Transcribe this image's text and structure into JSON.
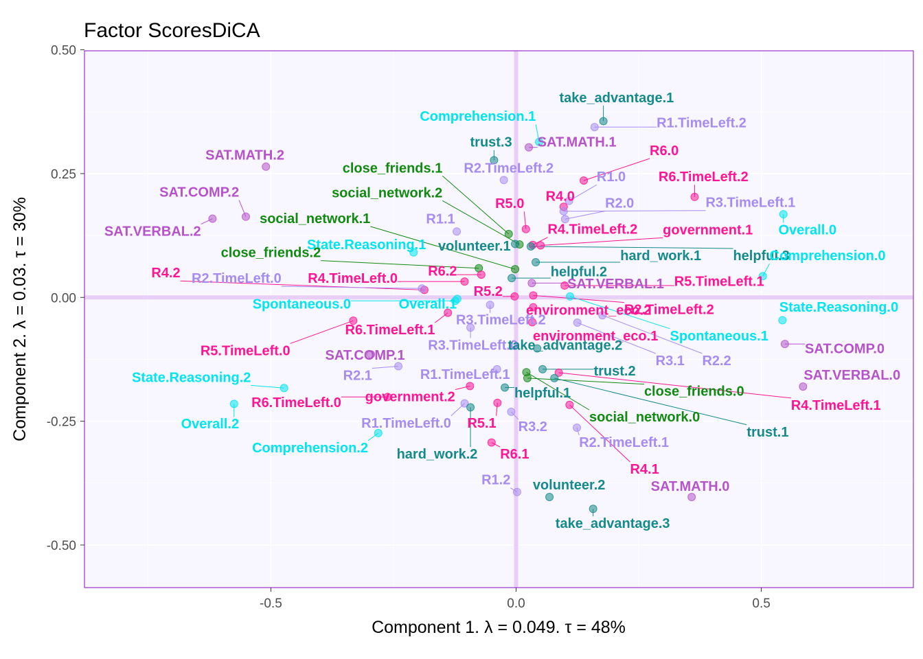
{
  "chart_data": {
    "type": "scatter",
    "title": "Factor ScoresDiCA",
    "xlabel": "Component 1.   λ = 0.049.  τ = 48%",
    "ylabel": "Component 2.   λ = 0.03.  τ = 30%",
    "xlim": [
      -0.88,
      0.81
    ],
    "ylim": [
      -0.586,
      0.498
    ],
    "xticks": [
      -0.5,
      0.0,
      0.5
    ],
    "xtick_labels": [
      "-0.5",
      "0.0",
      "0.5"
    ],
    "yticks": [
      -0.5,
      -0.25,
      0.0,
      0.25,
      0.5
    ],
    "ytick_labels": [
      "-0.50",
      "-0.25",
      "0.00",
      "0.25",
      "0.50"
    ],
    "grid": true,
    "colors": {
      "background": "#f8f6ff",
      "border": "#9932cc",
      "origin_lines": "#e8cff5",
      "grid": "#ffffff"
    },
    "groups": {
      "sat": "#b553c9",
      "teal": "#148a8a",
      "cyan": "#00e5ee",
      "lav": "#a78cf0",
      "pink": "#ff1493",
      "green": "#128a12"
    },
    "points": [
      {
        "label": "take_advantage.1",
        "x": 0.178,
        "y": 0.356,
        "group": "teal",
        "lx": 0.205,
        "ly": 0.404
      },
      {
        "label": "R1.TimeLeft.2",
        "x": 0.16,
        "y": 0.344,
        "group": "lav",
        "lx": 0.378,
        "ly": 0.353
      },
      {
        "label": "Comprehension.1",
        "x": 0.047,
        "y": 0.314,
        "group": "cyan",
        "lx": -0.078,
        "ly": 0.366
      },
      {
        "label": "trust.3",
        "x": -0.045,
        "y": 0.277,
        "group": "teal",
        "lx": -0.051,
        "ly": 0.314
      },
      {
        "label": "SAT.MATH.1",
        "x": 0.026,
        "y": 0.303,
        "group": "sat",
        "lx": 0.124,
        "ly": 0.314
      },
      {
        "label": "R6.0",
        "x": 0.138,
        "y": 0.236,
        "group": "pink",
        "lx": 0.302,
        "ly": 0.297
      },
      {
        "label": "SAT.MATH.2",
        "x": -0.51,
        "y": 0.264,
        "group": "sat",
        "lx": -0.553,
        "ly": 0.288
      },
      {
        "label": "close_friends.1",
        "x": -0.015,
        "y": 0.128,
        "group": "green",
        "lx": -0.252,
        "ly": 0.262
      },
      {
        "label": "R2.TimeLeft.2",
        "x": -0.025,
        "y": 0.237,
        "group": "lav",
        "lx": -0.015,
        "ly": 0.262
      },
      {
        "label": "R1.0",
        "x": 0.108,
        "y": 0.195,
        "group": "lav",
        "lx": 0.194,
        "ly": 0.244
      },
      {
        "label": "R6.TimeLeft.2",
        "x": 0.364,
        "y": 0.203,
        "group": "pink",
        "lx": 0.382,
        "ly": 0.244
      },
      {
        "label": "SAT.COMP.2",
        "x": -0.551,
        "y": 0.163,
        "group": "sat",
        "lx": -0.646,
        "ly": 0.213
      },
      {
        "label": "social_network.2",
        "x": 0.007,
        "y": 0.107,
        "group": "green",
        "lx": -0.263,
        "ly": 0.212
      },
      {
        "label": "R4.0",
        "x": 0.097,
        "y": 0.183,
        "group": "pink",
        "lx": 0.09,
        "ly": 0.205
      },
      {
        "label": "R3.TimeLeft.1",
        "x": 0.097,
        "y": 0.174,
        "group": "lav",
        "lx": 0.478,
        "ly": 0.192
      },
      {
        "label": "R2.0",
        "x": 0.1,
        "y": 0.158,
        "group": "lav",
        "lx": 0.211,
        "ly": 0.191
      },
      {
        "label": "R5.0",
        "x": 0.02,
        "y": 0.138,
        "group": "pink",
        "lx": -0.013,
        "ly": 0.19
      },
      {
        "label": "SAT.VERBAL.2",
        "x": -0.619,
        "y": 0.159,
        "group": "sat",
        "lx": -0.741,
        "ly": 0.134
      },
      {
        "label": "social_network.1",
        "x": -0.002,
        "y": 0.057,
        "group": "green",
        "lx": -0.41,
        "ly": 0.16
      },
      {
        "label": "R1.1",
        "x": -0.121,
        "y": 0.133,
        "group": "lav",
        "lx": -0.154,
        "ly": 0.159
      },
      {
        "label": "R4.TimeLeft.2",
        "x": 0.034,
        "y": 0.106,
        "group": "pink",
        "lx": 0.156,
        "ly": 0.138
      },
      {
        "label": "government.1",
        "x": 0.05,
        "y": 0.105,
        "group": "pink",
        "lx": 0.391,
        "ly": 0.137
      },
      {
        "label": "Overall.0",
        "x": 0.545,
        "y": 0.168,
        "group": "cyan",
        "lx": 0.594,
        "ly": 0.137
      },
      {
        "label": "volunteer.1",
        "x": -0.002,
        "y": 0.108,
        "group": "teal",
        "lx": -0.085,
        "ly": 0.104
      },
      {
        "label": "State.Reasoning.1",
        "x": -0.209,
        "y": 0.091,
        "group": "cyan",
        "lx": -0.305,
        "ly": 0.107
      },
      {
        "label": "close_friends.2",
        "x": -0.076,
        "y": 0.059,
        "group": "green",
        "lx": -0.5,
        "ly": 0.091
      },
      {
        "label": "hard_work.1",
        "x": 0.04,
        "y": 0.071,
        "group": "teal",
        "lx": 0.295,
        "ly": 0.085
      },
      {
        "label": "helpful.3",
        "x": 0.03,
        "y": 0.103,
        "group": "teal",
        "lx": 0.5,
        "ly": 0.085
      },
      {
        "label": "Comprehension.0",
        "x": 0.503,
        "y": 0.043,
        "group": "cyan",
        "lx": 0.635,
        "ly": 0.085
      },
      {
        "label": "helpful.2",
        "x": -0.009,
        "y": 0.039,
        "group": "teal",
        "lx": 0.128,
        "ly": 0.052
      },
      {
        "label": "R6.2",
        "x": -0.071,
        "y": 0.046,
        "group": "pink",
        "lx": -0.15,
        "ly": 0.054
      },
      {
        "label": "R4.2",
        "x": -0.187,
        "y": 0.015,
        "group": "pink",
        "lx": -0.714,
        "ly": 0.05
      },
      {
        "label": "R2.TimeLeft.0",
        "x": -0.192,
        "y": 0.018,
        "group": "lav",
        "lx": -0.57,
        "ly": 0.039
      },
      {
        "label": "R4.TimeLeft.0",
        "x": -0.105,
        "y": 0.032,
        "group": "pink",
        "lx": -0.333,
        "ly": 0.039
      },
      {
        "label": "SAT.VERBAL.1",
        "x": 0.032,
        "y": 0.029,
        "group": "sat",
        "lx": 0.203,
        "ly": 0.028
      },
      {
        "label": "R5.TimeLeft.1",
        "x": 0.099,
        "y": 0.024,
        "group": "pink",
        "lx": 0.414,
        "ly": 0.033
      },
      {
        "label": "R5.2",
        "x": -0.003,
        "y": 0.002,
        "group": "pink",
        "lx": -0.057,
        "ly": 0.013
      },
      {
        "label": "Spontaneous.0",
        "x": -0.124,
        "y": -0.007,
        "group": "cyan",
        "lx": -0.437,
        "ly": -0.013
      },
      {
        "label": "Overall.1",
        "x": -0.12,
        "y": -0.003,
        "group": "cyan",
        "lx": -0.18,
        "ly": -0.013
      },
      {
        "label": "State.Reasoning.0",
        "x": 0.543,
        "y": -0.046,
        "group": "cyan",
        "lx": 0.658,
        "ly": -0.019
      },
      {
        "label": "environment_eco.2",
        "x": 0.035,
        "y": -0.02,
        "group": "pink",
        "lx": 0.148,
        "ly": -0.025
      },
      {
        "label": "R2.TimeLeft.2",
        "x": 0.035,
        "y": 0.004,
        "group": "pink",
        "lx": 0.312,
        "ly": -0.024
      },
      {
        "label": "R3.TimeLeft.2",
        "x": -0.053,
        "y": -0.015,
        "group": "lav",
        "lx": -0.031,
        "ly": -0.045
      },
      {
        "label": "R6.TimeLeft.1",
        "x": -0.139,
        "y": -0.031,
        "group": "pink",
        "lx": -0.257,
        "ly": -0.065
      },
      {
        "label": "environment_eco.1",
        "x": 0.033,
        "y": -0.05,
        "group": "pink",
        "lx": 0.162,
        "ly": -0.077
      },
      {
        "label": "Spontaneous.1",
        "x": 0.11,
        "y": 0.002,
        "group": "cyan",
        "lx": 0.414,
        "ly": -0.077
      },
      {
        "label": "SAT.COMP.0",
        "x": 0.548,
        "y": -0.094,
        "group": "sat",
        "lx": 0.67,
        "ly": -0.103
      },
      {
        "label": "R3.TimeLeft.0",
        "x": -0.093,
        "y": -0.061,
        "group": "lav",
        "lx": -0.088,
        "ly": -0.096
      },
      {
        "label": "take_advantage.2",
        "x": 0.043,
        "y": -0.103,
        "group": "teal",
        "lx": 0.1,
        "ly": -0.096
      },
      {
        "label": "R5.TimeLeft.0",
        "x": -0.332,
        "y": -0.047,
        "group": "pink",
        "lx": -0.552,
        "ly": -0.107
      },
      {
        "label": "SAT.COMP.1",
        "x": -0.296,
        "y": -0.115,
        "group": "sat",
        "lx": -0.308,
        "ly": -0.116
      },
      {
        "label": "R3.1",
        "x": 0.125,
        "y": -0.051,
        "group": "lav",
        "lx": 0.314,
        "ly": -0.127
      },
      {
        "label": "R2.2",
        "x": 0.176,
        "y": -0.036,
        "group": "lav",
        "lx": 0.409,
        "ly": -0.127
      },
      {
        "label": "R2.1",
        "x": -0.24,
        "y": -0.139,
        "group": "lav",
        "lx": -0.323,
        "ly": -0.157
      },
      {
        "label": "R1.TimeLeft.1",
        "x": -0.039,
        "y": -0.145,
        "group": "lav",
        "lx": -0.104,
        "ly": -0.155
      },
      {
        "label": "trust.2",
        "x": 0.054,
        "y": -0.145,
        "group": "teal",
        "lx": 0.201,
        "ly": -0.148
      },
      {
        "label": "SAT.VERBAL.0",
        "x": 0.585,
        "y": -0.18,
        "group": "sat",
        "lx": 0.685,
        "ly": -0.156
      },
      {
        "label": "State.Reasoning.2",
        "x": -0.473,
        "y": -0.183,
        "group": "cyan",
        "lx": -0.662,
        "ly": -0.161
      },
      {
        "label": "government.2",
        "x": -0.094,
        "y": -0.179,
        "group": "pink",
        "lx": -0.216,
        "ly": -0.2
      },
      {
        "label": "helpful.1",
        "x": -0.023,
        "y": -0.182,
        "group": "teal",
        "lx": 0.054,
        "ly": -0.192
      },
      {
        "label": "close_friends.0",
        "x": 0.023,
        "y": -0.163,
        "group": "green",
        "lx": 0.363,
        "ly": -0.189
      },
      {
        "label": "R6.TimeLeft.0",
        "x": -0.262,
        "y": -0.201,
        "group": "pink",
        "lx": -0.448,
        "ly": -0.212
      },
      {
        "label": "R4.TimeLeft.1",
        "x": 0.087,
        "y": -0.152,
        "group": "pink",
        "lx": 0.652,
        "ly": -0.217
      },
      {
        "label": "Overall.2",
        "x": -0.575,
        "y": -0.215,
        "group": "cyan",
        "lx": -0.624,
        "ly": -0.255
      },
      {
        "label": "social_network.0",
        "x": 0.021,
        "y": -0.151,
        "group": "green",
        "lx": 0.262,
        "ly": -0.241
      },
      {
        "label": "R1.TimeLeft.0",
        "x": -0.105,
        "y": -0.214,
        "group": "lav",
        "lx": -0.224,
        "ly": -0.253
      },
      {
        "label": "R5.1",
        "x": -0.038,
        "y": -0.213,
        "group": "pink",
        "lx": -0.07,
        "ly": -0.253
      },
      {
        "label": "R3.2",
        "x": -0.01,
        "y": -0.231,
        "group": "lav",
        "lx": 0.034,
        "ly": -0.26
      },
      {
        "label": "trust.1",
        "x": 0.078,
        "y": -0.163,
        "group": "teal",
        "lx": 0.513,
        "ly": -0.271
      },
      {
        "label": "R2.TimeLeft.1",
        "x": 0.124,
        "y": -0.263,
        "group": "lav",
        "lx": 0.22,
        "ly": -0.292
      },
      {
        "label": "Comprehension.2",
        "x": -0.281,
        "y": -0.274,
        "group": "cyan",
        "lx": -0.42,
        "ly": -0.303
      },
      {
        "label": "hard_work.2",
        "x": -0.093,
        "y": -0.222,
        "group": "teal",
        "lx": -0.161,
        "ly": -0.316
      },
      {
        "label": "R6.1",
        "x": -0.05,
        "y": -0.293,
        "group": "pink",
        "lx": -0.003,
        "ly": -0.316
      },
      {
        "label": "R4.1",
        "x": 0.109,
        "y": -0.217,
        "group": "pink",
        "lx": 0.262,
        "ly": -0.346
      },
      {
        "label": "R1.2",
        "x": 0.002,
        "y": -0.393,
        "group": "lav",
        "lx": -0.041,
        "ly": -0.368
      },
      {
        "label": "volunteer.2",
        "x": 0.068,
        "y": -0.403,
        "group": "teal",
        "lx": 0.108,
        "ly": -0.378
      },
      {
        "label": "SAT.MATH.0",
        "x": 0.358,
        "y": -0.403,
        "group": "sat",
        "lx": 0.355,
        "ly": -0.381
      },
      {
        "label": "take_advantage.3",
        "x": 0.157,
        "y": -0.427,
        "group": "teal",
        "lx": 0.197,
        "ly": -0.456
      }
    ]
  }
}
